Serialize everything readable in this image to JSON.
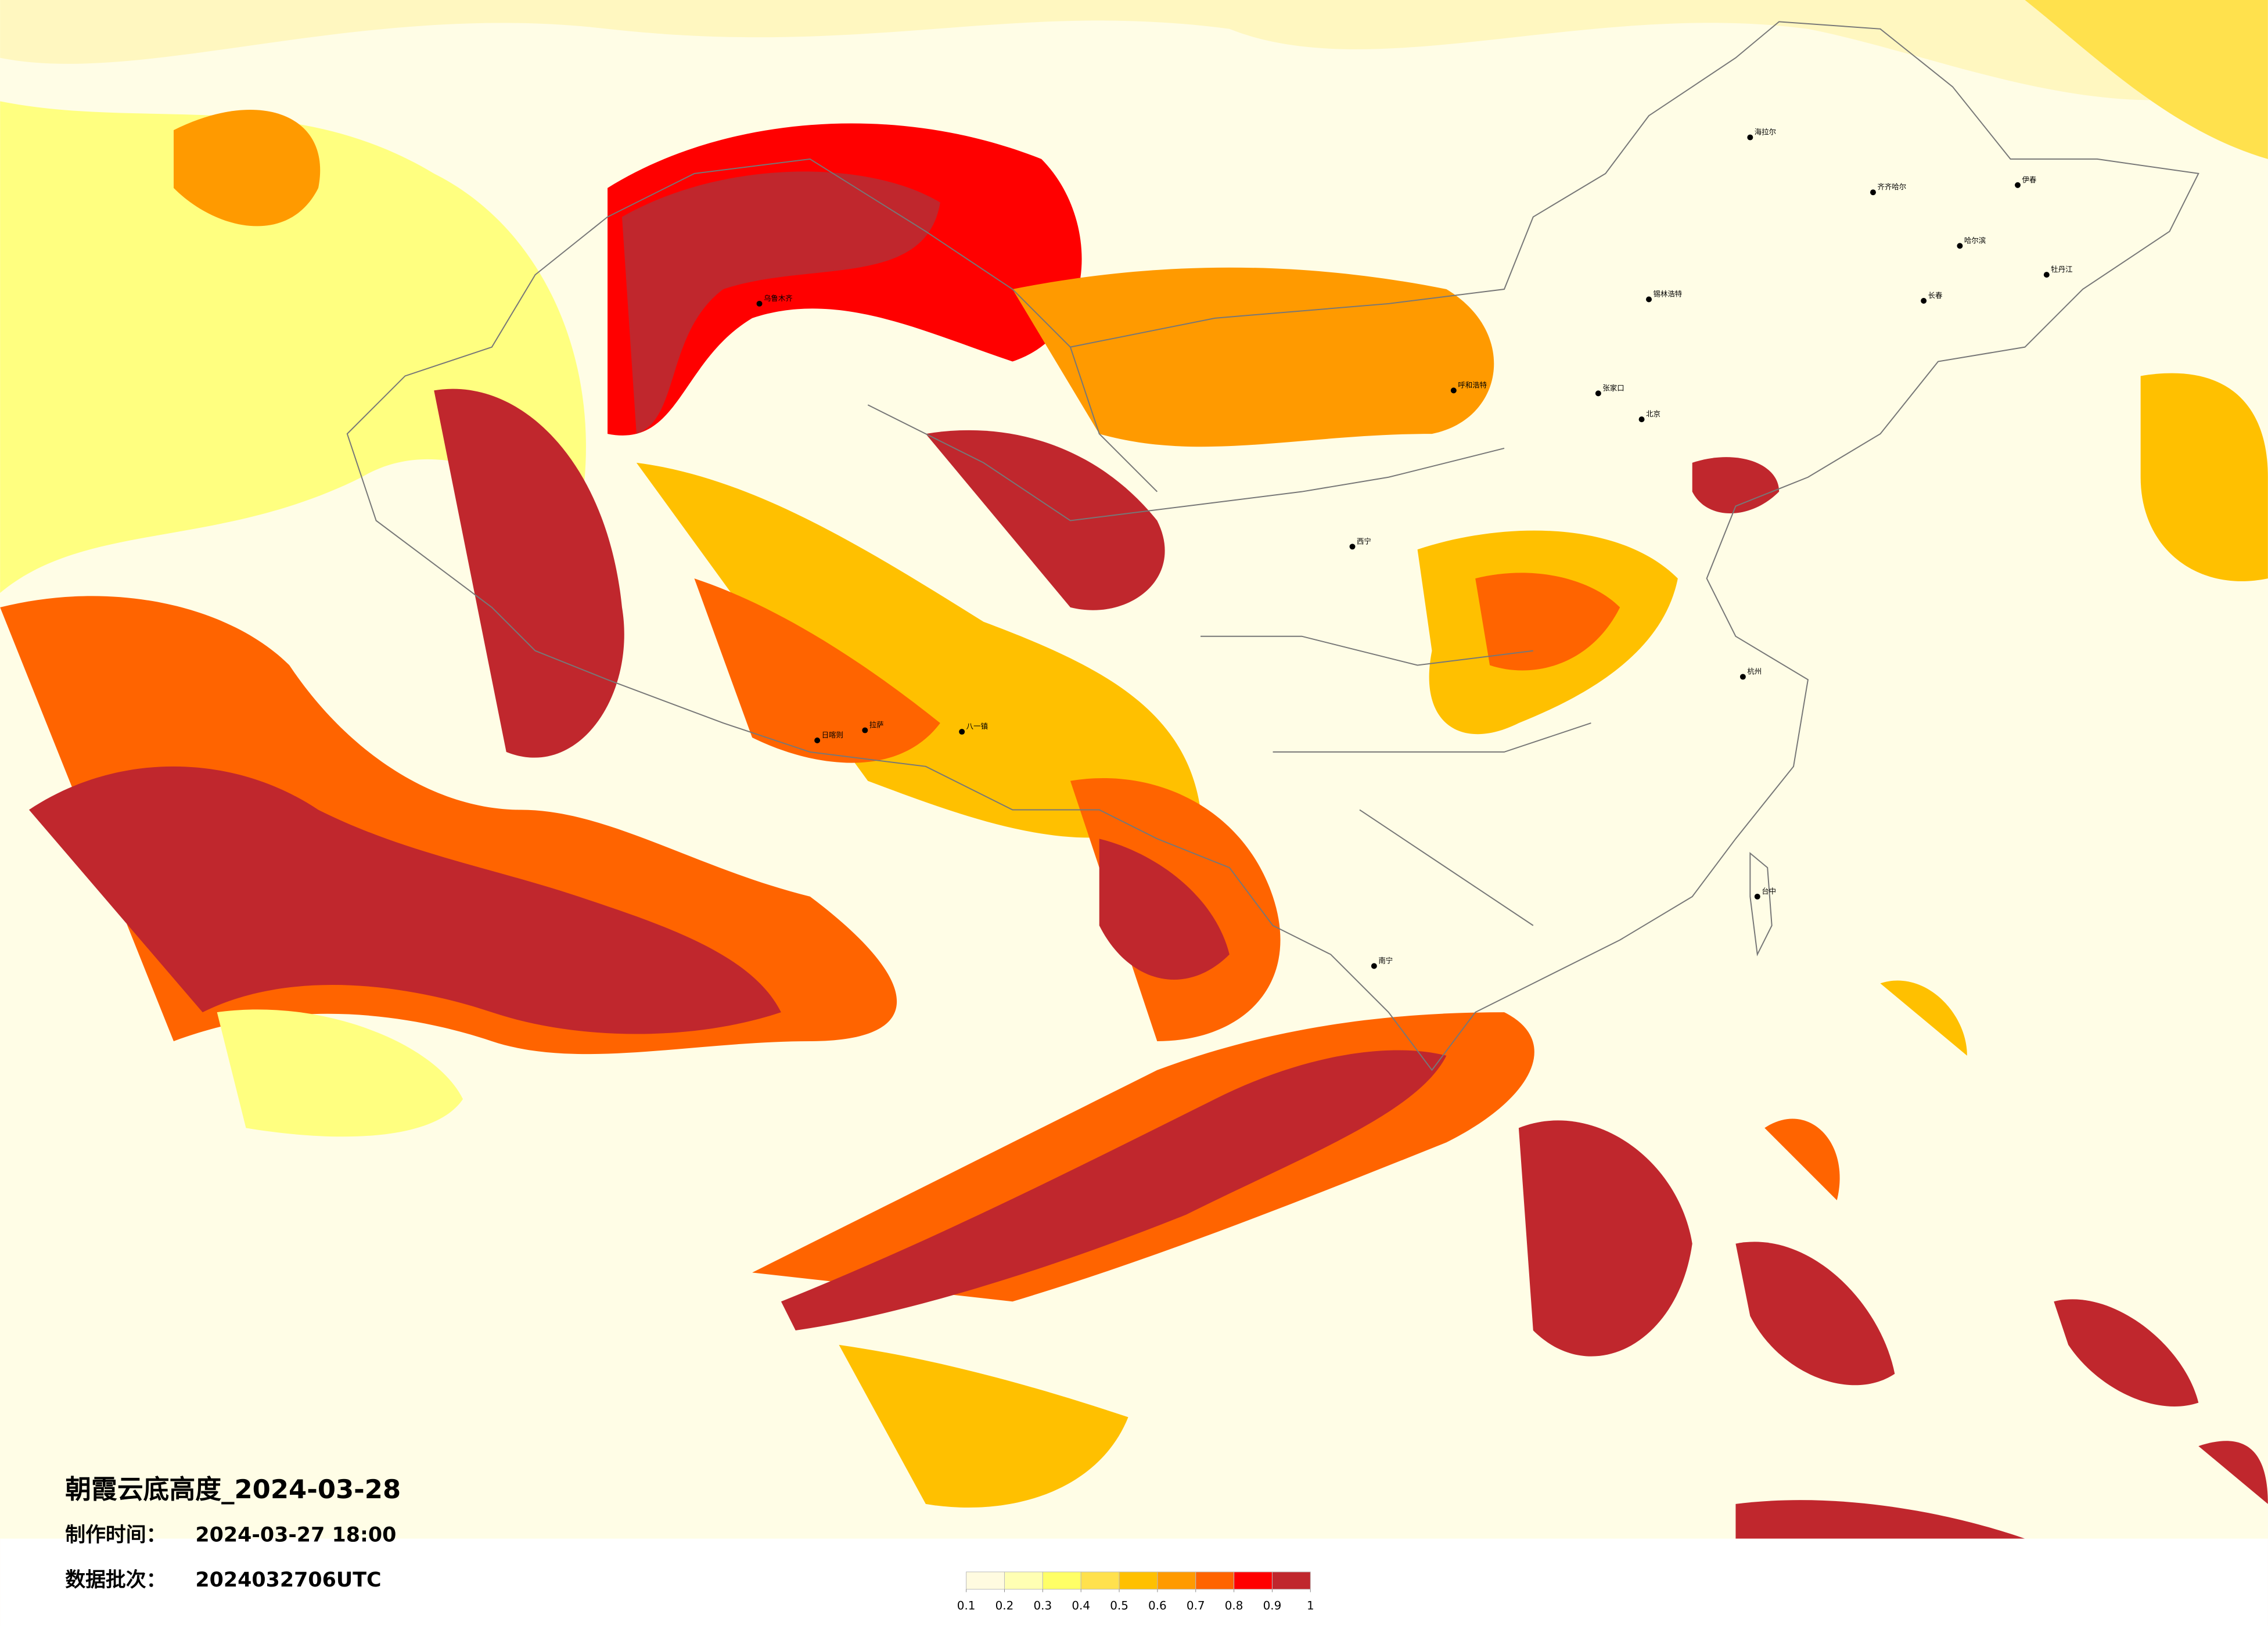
{
  "header": {
    "title": "朝霞云底高度_2024-03-28",
    "made_label": "制作时间：",
    "made_time": "2024-03-27 18:00",
    "batch_label": "数据批次：",
    "batch": "2024032706UTC"
  },
  "colorbar": {
    "ticks": [
      0.1,
      0.2,
      0.3,
      0.4,
      0.5,
      0.6,
      0.7,
      0.8,
      0.9,
      1
    ],
    "colors": [
      "#fffbe0",
      "#ffffb3",
      "#ffff66",
      "#ffe14d",
      "#ffc000",
      "#ff9a00",
      "#ff6400",
      "#ff0000",
      "#c0272d"
    ]
  },
  "cities": [
    {
      "name": "海拉尔"
    },
    {
      "name": "齐齐哈尔"
    },
    {
      "name": "哈尔滨"
    },
    {
      "name": "长春"
    },
    {
      "name": "锡林浩特"
    },
    {
      "name": "呼和浩特"
    },
    {
      "name": "张家口"
    },
    {
      "name": "北京"
    },
    {
      "name": "西宁"
    },
    {
      "name": "拉萨"
    },
    {
      "name": "日喀则"
    },
    {
      "name": "八一镇"
    },
    {
      "name": "南宁"
    },
    {
      "name": "台中"
    },
    {
      "name": "杭州"
    },
    {
      "name": "乌鲁木齐"
    },
    {
      "name": "伊春"
    },
    {
      "name": "牡丹江"
    }
  ]
}
